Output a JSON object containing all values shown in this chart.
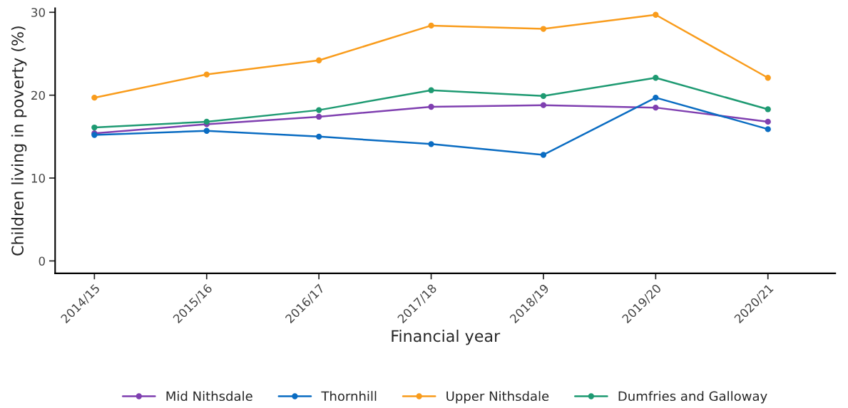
{
  "chart_data": {
    "type": "line",
    "xlabel": "Financial year",
    "ylabel": "Children living in poverty (%)",
    "categories": [
      "2014/15",
      "2015/16",
      "2016/17",
      "2017/18",
      "2018/19",
      "2019/20",
      "2020/21"
    ],
    "series": [
      {
        "name": "Mid Nithsdale",
        "color": "#7f3fb0",
        "values": [
          15.4,
          16.5,
          17.4,
          18.6,
          18.8,
          18.5,
          16.8
        ]
      },
      {
        "name": "Thornhill",
        "color": "#0a6cc2",
        "values": [
          15.2,
          15.7,
          15.0,
          14.1,
          12.8,
          19.7,
          15.9
        ]
      },
      {
        "name": "Upper Nithsdale",
        "color": "#f99c1c",
        "values": [
          19.7,
          22.5,
          24.2,
          28.4,
          28.0,
          29.7,
          22.1
        ]
      },
      {
        "name": "Dumfries and Galloway",
        "color": "#1e9a72",
        "values": [
          16.1,
          16.8,
          18.2,
          20.6,
          19.9,
          22.1,
          18.3
        ]
      }
    ],
    "ylim": [
      -1.5,
      30.5
    ],
    "yticks": [
      0,
      10,
      20,
      30
    ],
    "marker": "circle",
    "line_style": "solid",
    "grid": false,
    "legend": "bottom"
  }
}
